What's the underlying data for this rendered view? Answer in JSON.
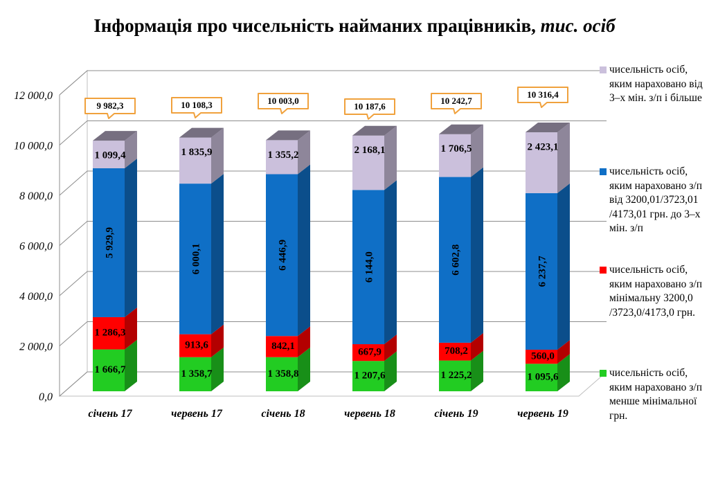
{
  "title": {
    "main": "Інформація про чисельність найманих працівників,",
    "unit": "тис. осіб"
  },
  "legend": [
    {
      "label": "чисельність осіб, яким нараховано від 3–х мін. з/п і більше",
      "color": "#cbc0dc"
    },
    {
      "label": "чисельність осіб, яким нараховано з/п від 3200,01/3723,01 /4173,01 грн. до 3–х мін. з/п",
      "color": "#0f6fc6"
    },
    {
      "label": "чисельність осіб, яким нараховано з/п мінімальну 3200,0 /3723,0/4173,0 грн.",
      "color": "#ff0000"
    },
    {
      "label": "чисельність осіб, яким нараховано з/п менше мінімальної грн.",
      "color": "#22cc22"
    }
  ],
  "chart_data": {
    "type": "bar",
    "stacked": true,
    "three_d": true,
    "categories": [
      "січень 17",
      "червень 17",
      "січень 18",
      "червень 18",
      "січень 19",
      "червень 19"
    ],
    "series": [
      {
        "name": "чисельність осіб, яким нараховано з/п менше мінімальної грн.",
        "color": "#22cc22",
        "values": [
          1666.7,
          1358.7,
          1358.8,
          1207.6,
          1225.2,
          1095.6
        ],
        "labels": [
          "1 666,7",
          "1 358,7",
          "1 358,8",
          "1 207,6",
          "1 225,2",
          "1 095,6"
        ]
      },
      {
        "name": "чисельність осіб, яким нараховано з/п мінімальну 3200,0 /3723,0/4173,0 грн.",
        "color": "#ff0000",
        "values": [
          1286.3,
          913.6,
          842.1,
          667.9,
          708.2,
          560.0
        ],
        "labels": [
          "1 286,3",
          "913,6",
          "842,1",
          "667,9",
          "708,2",
          "560,0"
        ]
      },
      {
        "name": "чисельність осіб, яким нараховано з/п від 3200,01/3723,01 /4173,01 грн. до 3–х мін. з/п",
        "color": "#0f6fc6",
        "values": [
          5929.9,
          6000.1,
          6446.9,
          6144.0,
          6602.8,
          6237.7
        ],
        "labels": [
          "5 929,9",
          "6 000,1",
          "6 446,9",
          "6 144,0",
          "6 602,8",
          "6 237,7"
        ]
      },
      {
        "name": "чисельність осіб, яким нараховано від 3–х мін. з/п і більше",
        "color": "#cbc0dc",
        "values": [
          1099.4,
          1835.9,
          1355.2,
          2168.1,
          1706.5,
          2423.1
        ],
        "labels": [
          "1 099,4",
          "1 835,9",
          "1 355,2",
          "2 168,1",
          "1 706,5",
          "2 423,1"
        ]
      }
    ],
    "totals": [
      9982.3,
      10108.3,
      10003.0,
      10187.6,
      10242.7,
      10316.4
    ],
    "total_labels": [
      "9 982,3",
      "10 108,3",
      "10 003,0",
      "10 187,6",
      "10 242,7",
      "10 316,4"
    ],
    "ylim": [
      0,
      12000
    ],
    "yticks": [
      0,
      2000,
      4000,
      6000,
      8000,
      10000,
      12000
    ],
    "ytick_labels": [
      "0,0",
      "2 000,0",
      "4 000,0",
      "6 000,0",
      "8 000,0",
      "10 000,0",
      "12 000,0"
    ],
    "grid": true,
    "legend_position": "right"
  }
}
